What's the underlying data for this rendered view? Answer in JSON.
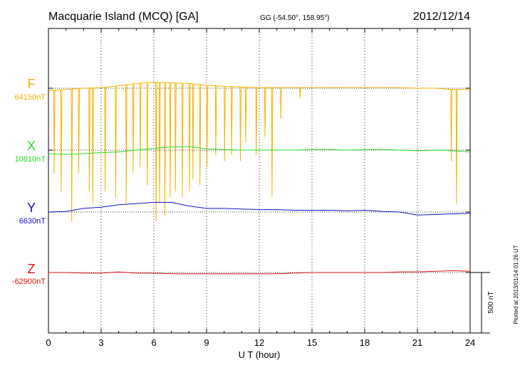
{
  "chart_data": {
    "type": "line",
    "title": "Macquarie Island (MCQ)  [GA]",
    "coords": "GG (-54.50°, 158.95°)",
    "date": "2012/12/14",
    "xlabel": "U T (hour)",
    "xlim": [
      0,
      24
    ],
    "xticks": [
      "0",
      "3",
      "6",
      "9",
      "12",
      "15",
      "18",
      "21",
      "24"
    ],
    "grid": "vertical dotted",
    "scale_bar": {
      "label": "500 nT",
      "value_nT": 500
    },
    "plotted_note": "Plotted at 2013/01/14 01:26 UT",
    "series": [
      {
        "name": "F",
        "baseline_label": "64150nT",
        "baseline_nT": 64150,
        "color": "#f5b400",
        "x": [
          0,
          0.5,
          1,
          2,
          3,
          4,
          5,
          6,
          7,
          8,
          9,
          10,
          11,
          12,
          13,
          14,
          15,
          16,
          17,
          18,
          19,
          20,
          21,
          22,
          23,
          24
        ],
        "y": [
          -20,
          -15,
          -10,
          0,
          5,
          20,
          40,
          50,
          45,
          40,
          25,
          15,
          10,
          5,
          5,
          5,
          5,
          5,
          5,
          5,
          5,
          5,
          0,
          0,
          -10,
          -10
        ],
        "spikes": [
          [
            0.3,
            -700
          ],
          [
            0.7,
            -850
          ],
          [
            1.3,
            -1100
          ],
          [
            1.7,
            -700
          ],
          [
            2.3,
            -850
          ],
          [
            2.5,
            -950
          ],
          [
            3.2,
            -850
          ],
          [
            3.8,
            -900
          ],
          [
            4.4,
            -950
          ],
          [
            4.8,
            -700
          ],
          [
            5.2,
            -650
          ],
          [
            5.6,
            -800
          ],
          [
            6.1,
            -1100
          ],
          [
            6.3,
            -950
          ],
          [
            6.6,
            -1050
          ],
          [
            6.9,
            -900
          ],
          [
            7.2,
            -850
          ],
          [
            7.6,
            -900
          ],
          [
            8.0,
            -850
          ],
          [
            8.2,
            -750
          ],
          [
            8.6,
            -800
          ],
          [
            9.0,
            -650
          ],
          [
            9.5,
            -550
          ],
          [
            10.0,
            -600
          ],
          [
            10.4,
            -550
          ],
          [
            10.9,
            -600
          ],
          [
            11.2,
            -450
          ],
          [
            11.8,
            -550
          ],
          [
            12.3,
            -400
          ],
          [
            12.7,
            -900
          ],
          [
            13.2,
            -250
          ],
          [
            14.3,
            -80
          ],
          [
            22.9,
            -600
          ],
          [
            23.2,
            -950
          ]
        ]
      },
      {
        "name": "X",
        "baseline_label": "10810nT",
        "baseline_nT": 10810,
        "color": "#22dd22",
        "x": [
          0,
          1,
          2,
          3,
          4,
          5,
          6,
          7,
          8,
          9,
          10,
          11,
          12,
          13,
          14,
          15,
          16,
          17,
          18,
          19,
          20,
          21,
          22,
          23,
          24
        ],
        "y": [
          -30,
          -35,
          -30,
          -20,
          -15,
          0,
          15,
          25,
          30,
          10,
          5,
          0,
          0,
          0,
          0,
          5,
          5,
          0,
          5,
          5,
          0,
          -5,
          0,
          -5,
          -15
        ]
      },
      {
        "name": "Y",
        "baseline_label": "6630nT",
        "baseline_nT": 6630,
        "color": "#1111cc",
        "x": [
          0,
          1,
          2,
          3,
          4,
          5,
          6,
          7,
          8,
          9,
          10,
          11,
          12,
          13,
          14,
          15,
          16,
          17,
          18,
          19,
          20,
          21,
          22,
          23,
          24
        ],
        "y": [
          0,
          5,
          30,
          40,
          60,
          70,
          80,
          80,
          50,
          30,
          30,
          25,
          20,
          20,
          15,
          15,
          15,
          10,
          15,
          5,
          0,
          -25,
          -20,
          -15,
          -10
        ]
      },
      {
        "name": "Z",
        "baseline_label": "-62900nT",
        "baseline_nT": -62900,
        "color": "#dd1111",
        "x": [
          0,
          1,
          2,
          3,
          4,
          5,
          6,
          7,
          8,
          9,
          10,
          11,
          12,
          13,
          14,
          15,
          16,
          17,
          18,
          19,
          20,
          21,
          22,
          23,
          24
        ],
        "y": [
          0,
          0,
          -5,
          -5,
          5,
          -5,
          -5,
          -10,
          -10,
          -10,
          -10,
          -10,
          -10,
          -10,
          -5,
          0,
          0,
          0,
          0,
          0,
          5,
          5,
          10,
          15,
          10
        ]
      }
    ]
  }
}
